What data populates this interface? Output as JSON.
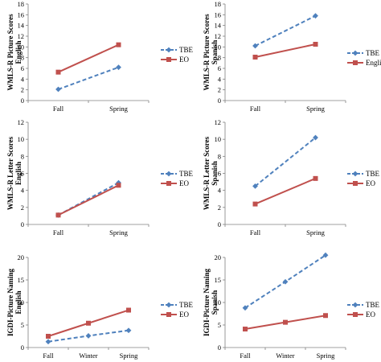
{
  "figure": {
    "colors": {
      "TBE": "#4f81bd",
      "EO": "#c0504d",
      "axis": "#808080"
    }
  },
  "chart_data": [
    {
      "id": "p1",
      "type": "line",
      "ylabel": [
        "WMLS-R Picture Scores",
        "English"
      ],
      "categories": [
        "Fall",
        "Spring"
      ],
      "ylim": [
        0,
        18
      ],
      "yticks": [
        0,
        2,
        4,
        6,
        8,
        10,
        12,
        14,
        16,
        18
      ],
      "series": [
        {
          "name": "TBE",
          "key": "TBE",
          "values": [
            2.1,
            6.2
          ]
        },
        {
          "name": "EO",
          "key": "EO",
          "values": [
            5.3,
            10.4
          ]
        }
      ]
    },
    {
      "id": "p2",
      "type": "line",
      "ylabel": [
        "WMLS-R Picture Scores",
        "Spanish"
      ],
      "categories": [
        "Fall",
        "Spring"
      ],
      "ylim": [
        0,
        18
      ],
      "yticks": [
        0,
        2,
        4,
        6,
        8,
        10,
        12,
        14,
        16,
        18
      ],
      "series": [
        {
          "name": "TBE",
          "key": "TBE",
          "values": [
            10.2,
            15.8
          ]
        },
        {
          "name": "English",
          "key": "EO",
          "values": [
            8.1,
            10.5
          ]
        }
      ]
    },
    {
      "id": "p3",
      "type": "line",
      "ylabel": [
        "WMLS-R Letter Scores",
        "English"
      ],
      "categories": [
        "Fall",
        "Spring"
      ],
      "ylim": [
        0,
        12
      ],
      "yticks": [
        0,
        2,
        4,
        6,
        8,
        10,
        12
      ],
      "series": [
        {
          "name": "TBE",
          "key": "TBE",
          "values": [
            1.1,
            4.9
          ]
        },
        {
          "name": "EO",
          "key": "EO",
          "values": [
            1.1,
            4.6
          ]
        }
      ]
    },
    {
      "id": "p4",
      "type": "line",
      "ylabel": [
        "WMLS-R Letter Scores",
        "Spanish"
      ],
      "categories": [
        "Fall",
        "Spring"
      ],
      "ylim": [
        0,
        12
      ],
      "yticks": [
        0,
        2,
        4,
        6,
        8,
        10,
        12
      ],
      "series": [
        {
          "name": "TBE",
          "key": "TBE",
          "values": [
            4.5,
            10.2
          ]
        },
        {
          "name": "EO",
          "key": "EO",
          "values": [
            2.4,
            5.4
          ]
        }
      ]
    },
    {
      "id": "p5",
      "type": "line",
      "ylabel": [
        "IGDI-Picture Naming",
        "English"
      ],
      "categories": [
        "Fall",
        "Winter",
        "Spring"
      ],
      "ylim": [
        0,
        20
      ],
      "yticks": [
        0,
        5,
        10,
        15,
        20
      ],
      "series": [
        {
          "name": "TBE",
          "key": "TBE",
          "values": [
            1.3,
            2.6,
            3.8
          ]
        },
        {
          "name": "EO",
          "key": "EO",
          "values": [
            2.5,
            5.4,
            8.3
          ]
        }
      ]
    },
    {
      "id": "p6",
      "type": "line",
      "ylabel": [
        "IGDI-Picture Naming",
        "Spanish"
      ],
      "categories": [
        "Fall",
        "Winter",
        "Spring"
      ],
      "ylim": [
        0,
        20
      ],
      "yticks": [
        0,
        5,
        10,
        15,
        20
      ],
      "series": [
        {
          "name": "TBE",
          "key": "TBE",
          "values": [
            8.8,
            14.6,
            20.5
          ]
        },
        {
          "name": "EO",
          "key": "EO",
          "values": [
            4.1,
            5.6,
            7.1
          ]
        }
      ]
    }
  ]
}
